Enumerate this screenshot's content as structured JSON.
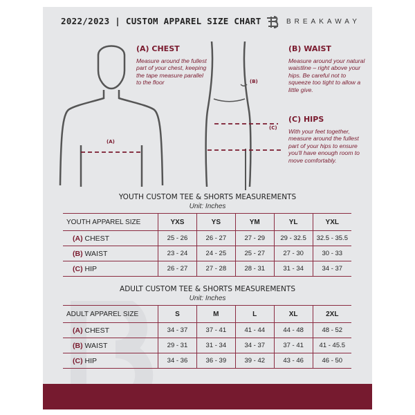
{
  "header": {
    "title": "2022/2023 | CUSTOM APPAREL SIZE CHART",
    "brand": "BREAKAWAY"
  },
  "guides": {
    "chest": {
      "label": "(A) CHEST",
      "desc": "Measure around the fullest part of your chest, keeping the tape measure parallel to the floor",
      "marker": "(A)"
    },
    "waist": {
      "label": "(B) WAIST",
      "desc": "Measure around your natural waistline – right above your hips. Be careful not to squeeze too tight to allow a little give.",
      "marker": "(B)"
    },
    "hips": {
      "label": "(C) HIPS",
      "desc": "With your feet together, measure around the fullest part of your hips to ensure you'll have enough room to move comfortably.",
      "marker": "(C)"
    }
  },
  "youth": {
    "title": "YOUTH CUSTOM TEE & SHORTS MEASUREMENTS",
    "unit": "Unit: Inches",
    "header": "YOUTH APPAREL SIZE",
    "sizes": [
      "YXS",
      "YS",
      "YM",
      "YL",
      "YXL"
    ],
    "rows": [
      {
        "code": "(A)",
        "name": "CHEST",
        "values": [
          "25 - 26",
          "26 - 27",
          "27 - 29",
          "29 - 32.5",
          "32.5 - 35.5"
        ]
      },
      {
        "code": "(B)",
        "name": "WAIST",
        "values": [
          "23 - 24",
          "24 - 25",
          "25 - 27",
          "27 - 30",
          "30 - 33"
        ]
      },
      {
        "code": "(C)",
        "name": "HIP",
        "values": [
          "26 - 27",
          "27 - 28",
          "28 - 31",
          "31 - 34",
          "34 - 37"
        ]
      }
    ]
  },
  "adult": {
    "title": "ADULT CUSTOM TEE & SHORTS MEASUREMENTS",
    "unit": "Unit: Inches",
    "header": "ADULT APPAREL SIZE",
    "sizes": [
      "S",
      "M",
      "L",
      "XL",
      "2XL"
    ],
    "rows": [
      {
        "code": "(A)",
        "name": "CHEST",
        "values": [
          "34 - 37",
          "37 - 41",
          "41 - 44",
          "44 - 48",
          "48 - 52"
        ]
      },
      {
        "code": "(B)",
        "name": "WAIST",
        "values": [
          "29 - 31",
          "31 - 34",
          "34 - 37",
          "37 - 41",
          "41 - 45.5"
        ]
      },
      {
        "code": "(C)",
        "name": "HIP",
        "values": [
          "34 - 36",
          "36 - 39",
          "39 - 42",
          "43 - 46",
          "46 - 50"
        ]
      }
    ]
  },
  "colors": {
    "accent": "#761a2f",
    "background": "#e6e7e9"
  }
}
